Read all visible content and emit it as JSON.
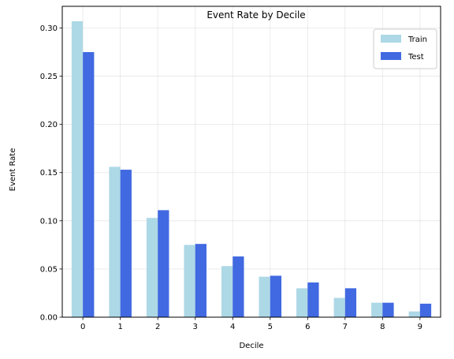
{
  "chart_data": {
    "type": "bar",
    "title": "Event Rate by Decile",
    "xlabel": "Decile",
    "ylabel": "Event Rate",
    "categories": [
      "0",
      "1",
      "2",
      "3",
      "4",
      "5",
      "6",
      "7",
      "8",
      "9"
    ],
    "series": [
      {
        "name": "Train",
        "color": "#add8e6",
        "values": [
          0.307,
          0.156,
          0.103,
          0.075,
          0.053,
          0.042,
          0.03,
          0.02,
          0.015,
          0.006
        ]
      },
      {
        "name": "Test",
        "color": "#4169e1",
        "values": [
          0.275,
          0.153,
          0.111,
          0.076,
          0.063,
          0.043,
          0.036,
          0.03,
          0.015,
          0.014
        ]
      }
    ],
    "yticks": [
      "0.00",
      "0.05",
      "0.10",
      "0.15",
      "0.20",
      "0.25",
      "0.30"
    ],
    "ylim": [
      0,
      0.3225
    ],
    "grid": true,
    "legend_position": "top-right"
  }
}
